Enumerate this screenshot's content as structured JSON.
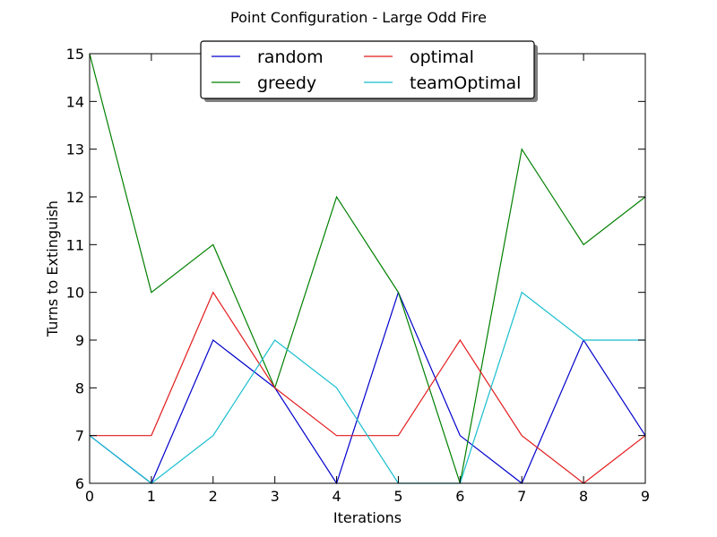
{
  "chart_data": {
    "type": "line",
    "title": "Point Configuration - Large Odd Fire",
    "xlabel": "Iterations",
    "ylabel": "Turns to Extinguish",
    "x": [
      0,
      1,
      2,
      3,
      4,
      5,
      6,
      7,
      8,
      9
    ],
    "xlim": [
      0,
      9
    ],
    "ylim": [
      6,
      15
    ],
    "xticks": [
      "0",
      "1",
      "2",
      "3",
      "4",
      "5",
      "6",
      "7",
      "8",
      "9"
    ],
    "yticks": [
      "6",
      "7",
      "8",
      "9",
      "10",
      "11",
      "12",
      "13",
      "14",
      "15"
    ],
    "grid": false,
    "legend_position": "top-center",
    "legend_columns": 2,
    "series": [
      {
        "name": "random",
        "color": "#0000cc",
        "values": [
          7,
          6,
          9,
          8,
          6,
          10,
          7,
          6,
          9,
          7
        ]
      },
      {
        "name": "greedy",
        "color": "#008000",
        "values": [
          15,
          10,
          11,
          8,
          12,
          10,
          6,
          13,
          11,
          12
        ]
      },
      {
        "name": "optimal",
        "color": "#e31a1c",
        "values": [
          7,
          7,
          10,
          8,
          7,
          7,
          9,
          7,
          6,
          7
        ]
      },
      {
        "name": "teamOptimal",
        "color": "#17becf",
        "values": [
          7,
          6,
          7,
          9,
          8,
          6,
          6,
          10,
          9,
          9
        ]
      }
    ]
  }
}
